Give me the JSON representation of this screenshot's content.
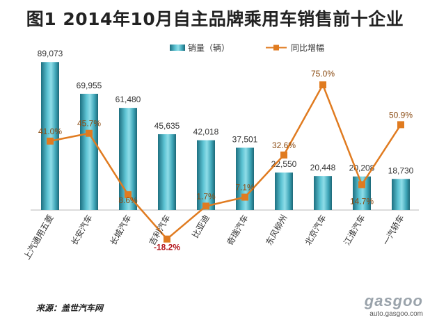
{
  "title": "图1  2014年10月自主品牌乘用车销售前十企业",
  "source": "来源：盖世汽车网",
  "watermark": {
    "logo": "gasgoo",
    "url": "auto.gasgoo.com"
  },
  "colors": {
    "bar": "#2f93a6",
    "line": "#e07b20",
    "pct_label": "#8a4b12",
    "pct_negative": "#b3141b"
  },
  "chart_data": {
    "type": "bar",
    "categories": [
      "上汽通用五菱",
      "长安汽车",
      "长城汽车",
      "吉利汽车",
      "比亚迪",
      "奇瑞汽车",
      "东风柳州",
      "北京汽车",
      "江淮汽车",
      "一汽轿车"
    ],
    "series": [
      {
        "name": "销量（辆）",
        "type": "bar",
        "axis": "left",
        "values": [
          89073,
          69955,
          61480,
          45635,
          42018,
          37501,
          22550,
          20448,
          20208,
          18730
        ],
        "labels": [
          "89,073",
          "69,955",
          "61,480",
          "45,635",
          "42,018",
          "37,501",
          "22,550",
          "20,448",
          "20,208",
          "18,730"
        ]
      },
      {
        "name": "同比增幅",
        "type": "line",
        "axis": "right",
        "values": [
          41.0,
          45.7,
          8.6,
          -18.2,
          1.7,
          7.1,
          32.6,
          75.0,
          14.7,
          50.9
        ],
        "labels": [
          "41.0%",
          "45.7%",
          "8.6%",
          "-18.2%",
          "1.7%",
          "7.1%",
          "32.6%",
          "75.0%",
          "14.7%",
          "50.9%"
        ]
      }
    ],
    "ylim_left": [
      0,
      90000
    ],
    "ylim_right": [
      -20,
      75
    ],
    "legend": "top-right",
    "grid": false
  }
}
